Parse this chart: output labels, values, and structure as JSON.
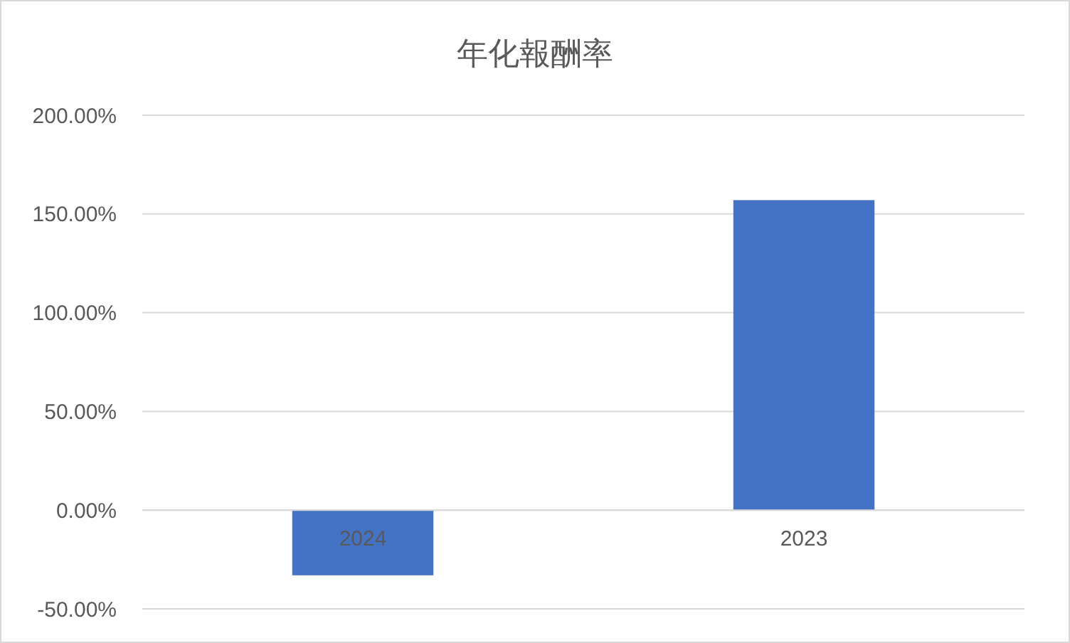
{
  "chart_data": {
    "type": "bar",
    "title": "年化報酬率",
    "categories": [
      "2024",
      "2023"
    ],
    "values": [
      -33,
      157
    ],
    "color": "#4472c4",
    "ylim": [
      -50,
      200
    ],
    "yticks": [
      {
        "value": -50,
        "label": "-50.00%"
      },
      {
        "value": 0,
        "label": "0.00%"
      },
      {
        "value": 50,
        "label": "50.00%"
      },
      {
        "value": 100,
        "label": "100.00%"
      },
      {
        "value": 150,
        "label": "150.00%"
      },
      {
        "value": 200,
        "label": "200.00%"
      }
    ],
    "grid": true
  }
}
